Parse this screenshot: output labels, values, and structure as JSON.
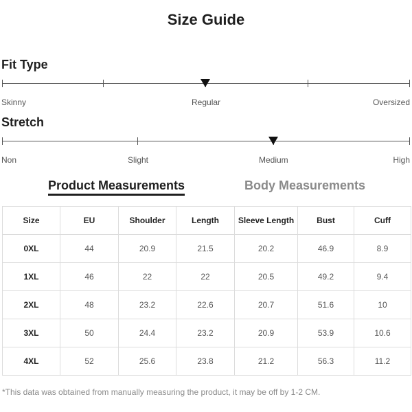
{
  "title": "Size Guide",
  "fit_type": {
    "heading": "Fit Type",
    "labels": [
      "Skinny",
      "Regular",
      "Oversized"
    ],
    "selected": "Regular"
  },
  "stretch": {
    "heading": "Stretch",
    "labels": [
      "Non",
      "Slight",
      "Medium",
      "High"
    ],
    "selected": "Medium"
  },
  "tabs": [
    {
      "label": "Product Measurements",
      "active": true
    },
    {
      "label": "Body Measurements",
      "active": false
    }
  ],
  "table": {
    "headers": [
      "Size",
      "EU",
      "Shoulder",
      "Length",
      "Sleeve Length",
      "Bust",
      "Cuff"
    ],
    "rows": [
      [
        "0XL",
        "44",
        "20.9",
        "21.5",
        "20.2",
        "46.9",
        "8.9"
      ],
      [
        "1XL",
        "46",
        "22",
        "22",
        "20.5",
        "49.2",
        "9.4"
      ],
      [
        "2XL",
        "48",
        "23.2",
        "22.6",
        "20.7",
        "51.6",
        "10"
      ],
      [
        "3XL",
        "50",
        "24.4",
        "23.2",
        "20.9",
        "53.9",
        "10.6"
      ],
      [
        "4XL",
        "52",
        "25.6",
        "23.8",
        "21.2",
        "56.3",
        "11.2"
      ]
    ]
  },
  "footnote": "*This data was obtained from manually measuring the product, it may be off by 1-2 CM."
}
